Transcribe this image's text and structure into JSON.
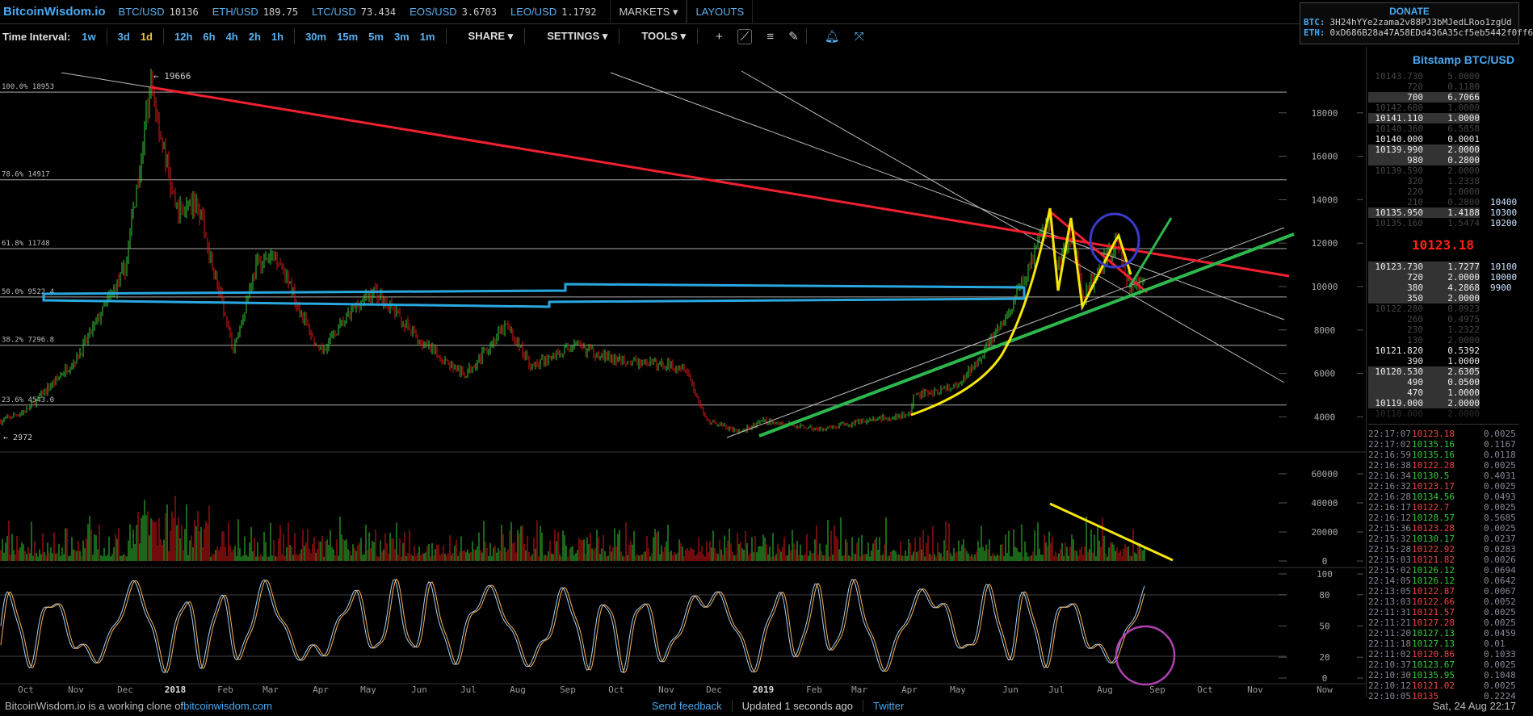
{
  "header": {
    "logo": "BitcoinWisdom.io",
    "tickers": [
      {
        "symbol": "BTC/USD",
        "price": "10136"
      },
      {
        "symbol": "ETH/USD",
        "price": "189.75"
      },
      {
        "symbol": "LTC/USD",
        "price": "73.434"
      },
      {
        "symbol": "EOS/USD",
        "price": "3.6703"
      },
      {
        "symbol": "LEO/USD",
        "price": "1.1792"
      }
    ],
    "markets": "MARKETS ▾",
    "layouts": "LAYOUTS"
  },
  "donate": {
    "title": "DONATE",
    "btc_label": "BTC:",
    "btc": "3H24hYYe2zama2v88PJ3bMJedLRoo1zgUd",
    "eth_label": "ETH:",
    "eth": "0xD686B28a47A58EDd436A35cf5eb5442f0ff6"
  },
  "toolbar": {
    "label": "Time Interval:",
    "intervals": [
      "1w",
      "3d",
      "1d",
      "12h",
      "6h",
      "4h",
      "2h",
      "1h",
      "30m",
      "15m",
      "5m",
      "3m",
      "1m"
    ],
    "selected": "1d",
    "share": "SHARE ▾",
    "settings": "SETTINGS ▾",
    "tools": "TOOLS ▾",
    "icons": [
      "plus-icon",
      "line-tool-icon",
      "horizontal-lines-icon",
      "pen-icon",
      "bell-icon",
      "expand-icon"
    ]
  },
  "chart_data": {
    "type": "candlestick",
    "market": "BTC/USD",
    "interval": "1d",
    "price_axis": [
      "18000",
      "16000",
      "14000",
      "12000",
      "10000",
      "8000",
      "6000",
      "4000"
    ],
    "volume_axis": [
      "60000",
      "40000",
      "20000",
      "0"
    ],
    "stoch_axis": [
      "100",
      "80",
      "50",
      "20",
      "0"
    ],
    "x_labels": [
      "Oct",
      "Nov",
      "Dec",
      "2018",
      "Feb",
      "Mar",
      "Apr",
      "May",
      "Jun",
      "Jul",
      "Aug",
      "Sep",
      "Oct",
      "Nov",
      "Dec",
      "2019",
      "Feb",
      "Mar",
      "Apr",
      "May",
      "Jun",
      "Jul",
      "Aug",
      "Sep",
      "Oct",
      "Nov",
      "Now"
    ],
    "high_label": "← 19666",
    "low_label": "← 2972",
    "fib_levels": [
      {
        "label": "100.0% 18953",
        "value": 18953
      },
      {
        "label": "78.6% 14917",
        "value": 14917
      },
      {
        "label": "61.8% 11748",
        "value": 11748
      },
      {
        "label": "50.0% 9522.4",
        "value": 9522.4
      },
      {
        "label": "38.2% 7296.8",
        "value": 7296.8
      },
      {
        "label": "23.6% 4543.0",
        "value": 4543.0
      }
    ],
    "price_path": [
      [
        "2017-09-15",
        3800
      ],
      [
        "2017-10-01",
        4300
      ],
      [
        "2017-11-01",
        6700
      ],
      [
        "2017-12-01",
        10800
      ],
      [
        "2017-12-17",
        19300
      ],
      [
        "2018-01-01",
        13500
      ],
      [
        "2018-01-15",
        13800
      ],
      [
        "2018-02-06",
        7000
      ],
      [
        "2018-02-20",
        11000
      ],
      [
        "2018-03-05",
        11400
      ],
      [
        "2018-03-31",
        6900
      ],
      [
        "2018-04-25",
        9300
      ],
      [
        "2018-05-05",
        9800
      ],
      [
        "2018-06-01",
        7500
      ],
      [
        "2018-06-29",
        5900
      ],
      [
        "2018-07-25",
        8200
      ],
      [
        "2018-08-10",
        6300
      ],
      [
        "2018-09-05",
        7300
      ],
      [
        "2018-10-01",
        6600
      ],
      [
        "2018-11-13",
        6300
      ],
      [
        "2018-11-25",
        3900
      ],
      [
        "2018-12-15",
        3300
      ],
      [
        "2019-01-01",
        3800
      ],
      [
        "2019-02-07",
        3400
      ],
      [
        "2019-03-01",
        3800
      ],
      [
        "2019-04-01",
        4100
      ],
      [
        "2019-04-03",
        5000
      ],
      [
        "2019-05-01",
        5400
      ],
      [
        "2019-05-31",
        8600
      ],
      [
        "2019-06-26",
        13000
      ],
      [
        "2019-07-01",
        10800
      ],
      [
        "2019-07-10",
        12500
      ],
      [
        "2019-07-17",
        9500
      ],
      [
        "2019-08-06",
        12000
      ],
      [
        "2019-08-15",
        10100
      ],
      [
        "2019-08-24",
        10130
      ]
    ],
    "colors": {
      "up": "#33cc33",
      "down": "#e01818",
      "stoch_k": "#9fd4ff",
      "stoch_d": "#ffb050"
    }
  },
  "orderbook": {
    "title": "Bitstamp BTC/USD",
    "last_price": "10123.18",
    "asks": [
      {
        "p": "10143.730",
        "a": "5.0000",
        "s": "dim"
      },
      {
        "p": "720",
        "a": "0.1180",
        "s": "dim"
      },
      {
        "p": "700",
        "a": "6.7066",
        "s": "hl"
      },
      {
        "p": "10142.680",
        "a": "1.0000",
        "s": "dim"
      },
      {
        "p": "10141.110",
        "a": "1.0000",
        "s": "hl"
      },
      {
        "p": "10140.360",
        "a": "6.5858",
        "s": "dim"
      },
      {
        "p": "10140.000",
        "a": "0.0001",
        "s": "wh"
      },
      {
        "p": "10139.990",
        "a": "2.0000",
        "s": "hl"
      },
      {
        "p": "980",
        "a": "0.2800",
        "s": "hl"
      },
      {
        "p": "10139.590",
        "a": "2.0000",
        "s": "dim"
      },
      {
        "p": "320",
        "a": "1.2338",
        "s": "dim"
      },
      {
        "p": "220",
        "a": "1.0000",
        "s": "dim"
      },
      {
        "p": "210",
        "a": "0.2800",
        "s": "dim",
        "lv": "10400"
      },
      {
        "p": "10135.950",
        "a": "1.4188",
        "s": "hl",
        "lv": "10300"
      },
      {
        "p": "10135.160",
        "a": "1.5474",
        "s": "dim",
        "lv": "10200"
      }
    ],
    "bids": [
      {
        "p": "10123.730",
        "a": "1.7277",
        "s": "hl",
        "lv": "10100"
      },
      {
        "p": "720",
        "a": "2.0000",
        "s": "hl",
        "lv": "10000"
      },
      {
        "p": "380",
        "a": "4.2868",
        "s": "hl",
        "lv": "9900"
      },
      {
        "p": "350",
        "a": "2.0000",
        "s": "hl"
      },
      {
        "p": "10122.280",
        "a": "0.0923",
        "s": "dim"
      },
      {
        "p": "260",
        "a": "0.4975",
        "s": "dim"
      },
      {
        "p": "230",
        "a": "1.2322",
        "s": "dim"
      },
      {
        "p": "130",
        "a": "2.0000",
        "s": "dim"
      },
      {
        "p": "10121.820",
        "a": "0.5392",
        "s": "wh"
      },
      {
        "p": "390",
        "a": "1.0000",
        "s": "wh"
      },
      {
        "p": "10120.530",
        "a": "2.6305",
        "s": "hl"
      },
      {
        "p": "490",
        "a": "0.0500",
        "s": "hl"
      },
      {
        "p": "470",
        "a": "1.0000",
        "s": "hl"
      },
      {
        "p": "10119.000",
        "a": "2.0000",
        "s": "hl"
      },
      {
        "p": "10118.000",
        "a": "2.0000",
        "s": "vd"
      }
    ]
  },
  "trades": [
    [
      "22:17:07",
      "10123.18",
      "rd",
      "0.0025"
    ],
    [
      "22:17:02",
      "10135.16",
      "g",
      "0.1167"
    ],
    [
      "22:16:59",
      "10135.16",
      "g",
      "0.0118"
    ],
    [
      "22:16:38",
      "10122.28",
      "rd",
      "0.0025"
    ],
    [
      "22:16:34",
      "10130.5",
      "g",
      "0.4031"
    ],
    [
      "22:16:32",
      "10123.17",
      "rd",
      "0.0025"
    ],
    [
      "22:16:28",
      "10134.56",
      "g",
      "0.0493"
    ],
    [
      "22:16:17",
      "10122.7",
      "rd",
      "0.0025"
    ],
    [
      "22:16:12",
      "10128.57",
      "g",
      "0.5685"
    ],
    [
      "22:15:36",
      "10123.28",
      "rd",
      "0.0025"
    ],
    [
      "22:15:32",
      "10130.17",
      "g",
      "0.0237"
    ],
    [
      "22:15:28",
      "10122.92",
      "rd",
      "0.0283"
    ],
    [
      "22:15:03",
      "10121.82",
      "rd",
      "0.0026"
    ],
    [
      "22:15:02",
      "10126.12",
      "g",
      "0.0694"
    ],
    [
      "22:14:05",
      "10126.12",
      "g",
      "0.0642"
    ],
    [
      "22:13:05",
      "10122.87",
      "rd",
      "0.0067"
    ],
    [
      "22:13:03",
      "10122.66",
      "rd",
      "0.0052"
    ],
    [
      "22:11:31",
      "10121.57",
      "rd",
      "0.0025"
    ],
    [
      "22:11:21",
      "10127.28",
      "rd",
      "0.0025"
    ],
    [
      "22:11:20",
      "10127.13",
      "g",
      "0.0459"
    ],
    [
      "22:11:18",
      "10127.13",
      "g",
      "0.01"
    ],
    [
      "22:11:02",
      "10120.86",
      "rd",
      "0.1033"
    ],
    [
      "22:10:37",
      "10123.67",
      "g",
      "0.0025"
    ],
    [
      "22:10:30",
      "10135.95",
      "g",
      "0.1048"
    ],
    [
      "22:10:12",
      "10121.02",
      "rd",
      "0.0025"
    ],
    [
      "22:10:05",
      "10135",
      "rd",
      "0.2224"
    ]
  ],
  "footer": {
    "text": "BitcoinWisdom.io is a working clone of ",
    "link": "bitcoinwisdom.com",
    "feedback": "Send feedback",
    "updated": "Updated 1 seconds ago",
    "twitter": "Twitter",
    "datetime": "Sat, 24 Aug 22:17"
  }
}
